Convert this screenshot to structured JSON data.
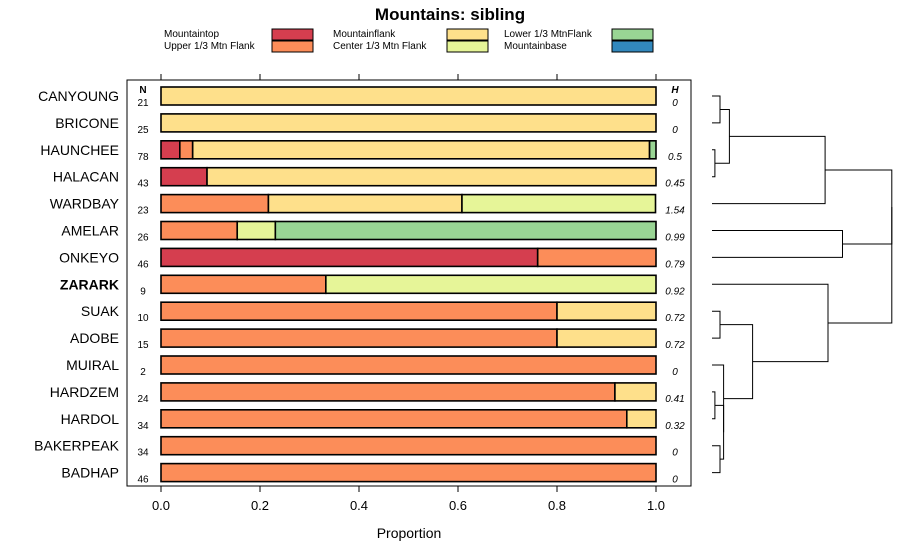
{
  "chart_data": {
    "type": "bar",
    "stacked": true,
    "orientation": "horizontal",
    "title": "Mountains: sibling",
    "xlabel": "Proportion",
    "ylabel": "",
    "xlim": [
      0,
      1
    ],
    "x_ticks": [
      0,
      0.2,
      0.4,
      0.6,
      0.8,
      1
    ],
    "x_tick_labels": [
      "0.0",
      "0.2",
      "0.4",
      "0.6",
      "0.8",
      "1.0"
    ],
    "n_header": "N",
    "h_header": "H",
    "legend": [
      {
        "name": "Mountaintop",
        "color": "#d53e4f"
      },
      {
        "name": "Upper 1/3 Mtn Flank",
        "color": "#fc8d59"
      },
      {
        "name": "Mountainflank",
        "color": "#fee08b"
      },
      {
        "name": "Center 1/3 Mtn Flank",
        "color": "#e6f598"
      },
      {
        "name": "Lower 1/3 MtnFlank",
        "color": "#99d594"
      },
      {
        "name": "Mountainbase",
        "color": "#3288bd"
      }
    ],
    "categories": [
      "CANYOUNG",
      "BRICONE",
      "HAUNCHEE",
      "HALACAN",
      "WARDBAY",
      "AMELAR",
      "ONKEYO",
      "ZARARK",
      "SUAK",
      "ADOBE",
      "MUIRAL",
      "HARDZEM",
      "HARDOL",
      "BAKERPEAK",
      "BADHAP"
    ],
    "highlight": "ZARARK",
    "n_values": [
      "21",
      "25",
      "78",
      "43",
      "23",
      "26",
      "46",
      "9",
      "10",
      "15",
      "2",
      "24",
      "34",
      "34",
      "46"
    ],
    "h_values": [
      "0",
      "0",
      "0.5",
      "0.45",
      "1.54",
      "0.99",
      "0.79",
      "0.92",
      "0.72",
      "0.72",
      "0",
      "0.41",
      "0.32",
      "0",
      "0"
    ],
    "series": [
      {
        "name": "Mountaintop",
        "values": [
          0,
          0,
          0.038,
          0.093,
          0,
          0,
          0.761,
          0,
          0,
          0,
          0,
          0,
          0,
          0,
          0
        ]
      },
      {
        "name": "Upper 1/3 Mtn Flank",
        "values": [
          0,
          0,
          0.026,
          0,
          0.217,
          0.154,
          0.239,
          0.333,
          0.8,
          0.8,
          1,
          0.917,
          0.941,
          1,
          1
        ]
      },
      {
        "name": "Mountainflank",
        "values": [
          1,
          1,
          0.923,
          0.907,
          0.391,
          0,
          0,
          0,
          0.2,
          0.2,
          0,
          0.083,
          0.059,
          0,
          0
        ]
      },
      {
        "name": "Center 1/3 Mtn Flank",
        "values": [
          0,
          0,
          0,
          0,
          0.391,
          0.077,
          0,
          0.667,
          0,
          0,
          0,
          0,
          0,
          0,
          0
        ]
      },
      {
        "name": "Lower 1/3 MtnFlank",
        "values": [
          0,
          0,
          0.013,
          0,
          0,
          0.769,
          0,
          0,
          0,
          0,
          0,
          0,
          0,
          0,
          0
        ]
      },
      {
        "name": "Mountainbase",
        "values": [
          0,
          0,
          0,
          0,
          0,
          0,
          0,
          0,
          0,
          0,
          0,
          0,
          0,
          0,
          0
        ]
      }
    ],
    "dendrogram": {
      "type": "hierarchical clustering of rows",
      "merges": [
        {
          "a": "CANYOUNG",
          "b": "BRICONE",
          "height": 0.0
        },
        {
          "a": "HAUNCHEE",
          "b": "HALACAN",
          "height": 0.01
        },
        {
          "a": "{CANYOUNG,BRICONE}",
          "b": "{HAUNCHEE,HALACAN}",
          "height": 0.06
        },
        {
          "a": "{CANYOUNG,BRICONE,HAUNCHEE,HALACAN}",
          "b": "WARDBAY",
          "height": 0.39
        },
        {
          "a": "AMELAR",
          "b": "ONKEYO",
          "height": 0.45
        },
        {
          "a": "{CANYOUNG..WARDBAY}",
          "b": "{AMELAR,ONKEYO}",
          "height": 0.62
        },
        {
          "a": "SUAK",
          "b": "ADOBE",
          "height": 0.0
        },
        {
          "a": "BAKERPEAK",
          "b": "BADHAP",
          "height": 0.0
        },
        {
          "a": "HARDZEM",
          "b": "HARDOL",
          "height": 0.01
        },
        {
          "a": "{HARDZEM,HARDOL}",
          "b": "{BAKERPEAK,BADHAP}",
          "height": 0.04
        },
        {
          "a": "MUIRAL",
          "b": "{HARDZEM,HARDOL,BAKERPEAK,BADHAP}",
          "height": 0.04
        },
        {
          "a": "{SUAK,ADOBE}",
          "b": "{MUIRAL..BADHAP}",
          "height": 0.14
        },
        {
          "a": "ZARARK",
          "b": "{SUAK..BADHAP}",
          "height": 0.4
        },
        {
          "a": "{CANYOUNG..ONKEYO}",
          "b": "{ZARARK..BADHAP}",
          "height": 0.62
        }
      ]
    }
  }
}
